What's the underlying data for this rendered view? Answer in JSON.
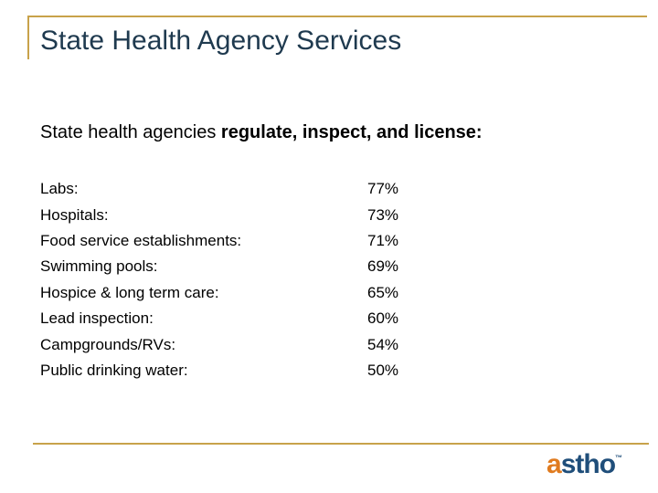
{
  "slide": {
    "title": "State Health Agency Services",
    "subtitle_plain": "State health agencies ",
    "subtitle_bold": "regulate, inspect, and license:",
    "items": [
      {
        "label": "Labs:",
        "value": "77%"
      },
      {
        "label": "Hospitals:",
        "value": "73%"
      },
      {
        "label": "Food service establishments:",
        "value": "71%"
      },
      {
        "label": "Swimming pools:",
        "value": "69%"
      },
      {
        "label": "Hospice & long term care:",
        "value": "65%"
      },
      {
        "label": "Lead inspection:",
        "value": "60%"
      },
      {
        "label": "Campgrounds/RVs:",
        "value": "54%"
      },
      {
        "label": "Public drinking water:",
        "value": "50%"
      }
    ]
  },
  "logo": {
    "first_letter": "a",
    "rest": "stho",
    "tm": "™"
  },
  "colors": {
    "accent_gold": "#c8a24a",
    "title_color": "#1f3a4f",
    "logo_orange": "#e07b1f",
    "logo_blue": "#1f4e7a"
  }
}
